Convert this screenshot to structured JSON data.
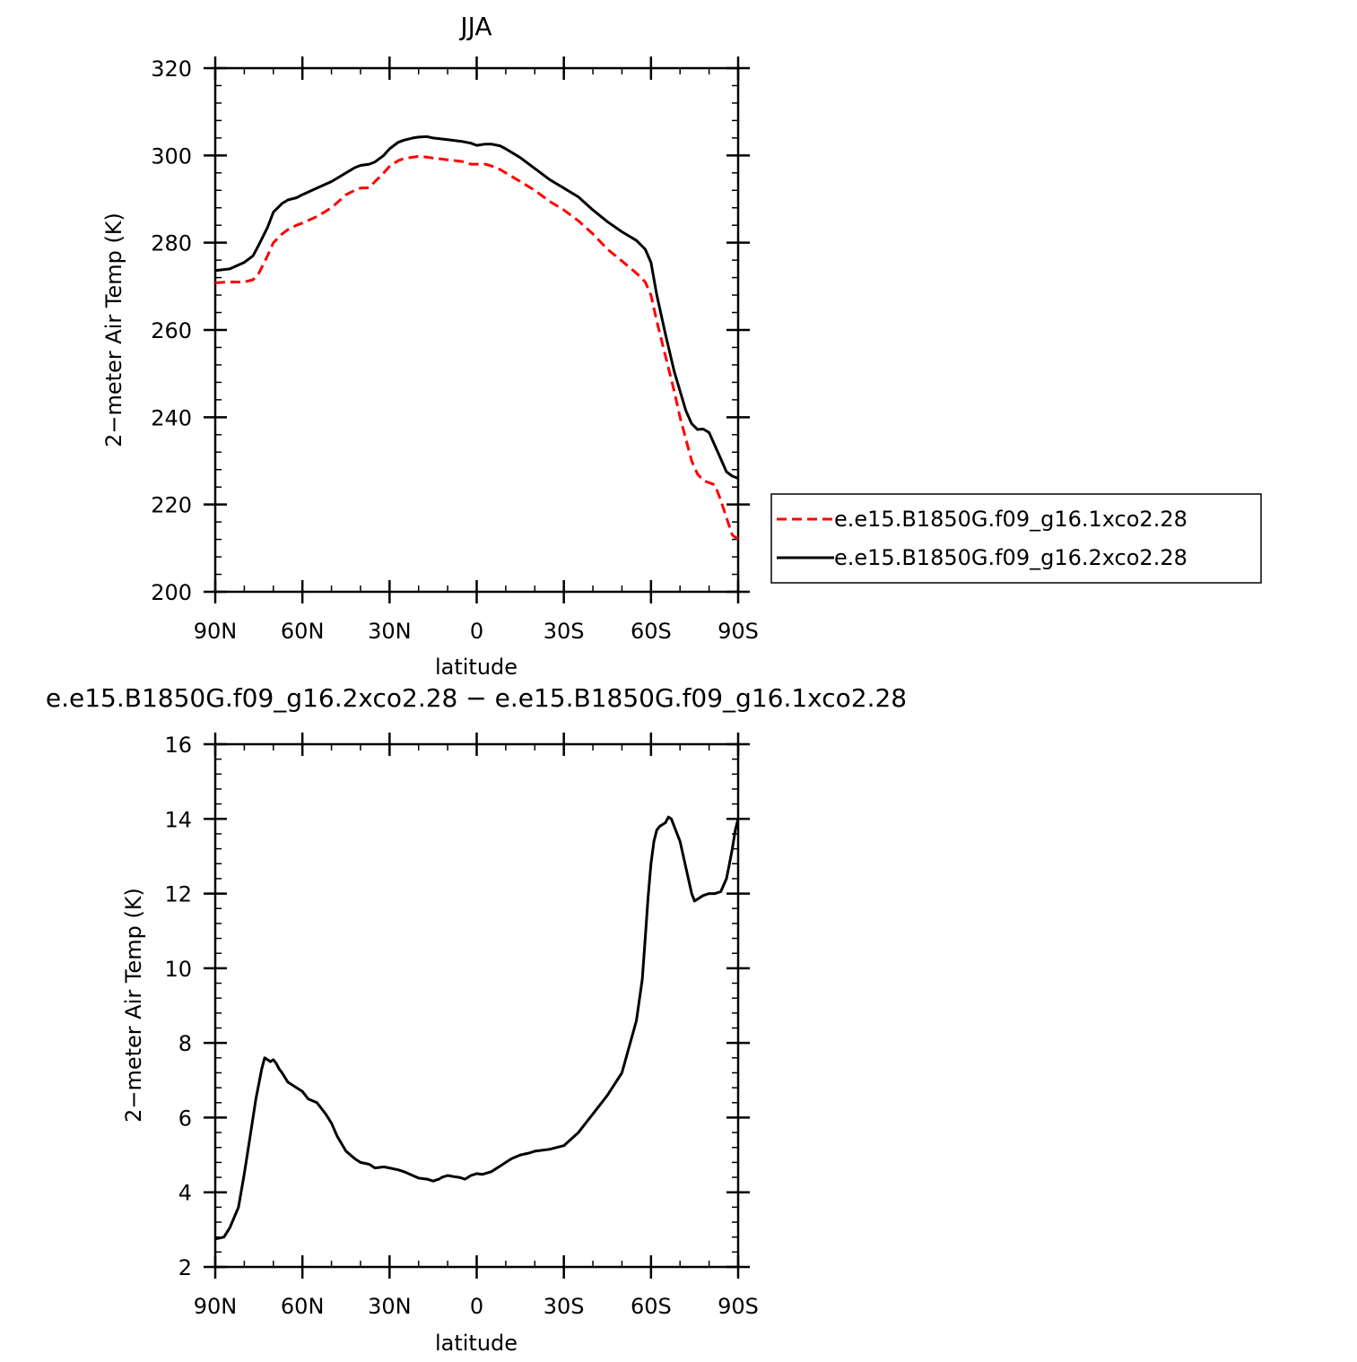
{
  "chart_data": [
    {
      "type": "line",
      "title": "JJA",
      "xlabel": "latitude",
      "ylabel": "2−meter Air Temp (K)",
      "xlim": [
        90,
        -90
      ],
      "ylim": [
        200,
        320
      ],
      "x_ticks": [
        90,
        60,
        30,
        0,
        -30,
        -60,
        -90
      ],
      "x_tick_labels": [
        "90N",
        "60N",
        "30N",
        "0",
        "30S",
        "60S",
        "90S"
      ],
      "y_ticks": [
        200,
        220,
        240,
        260,
        280,
        300,
        320
      ],
      "y_tick_labels": [
        "200",
        "220",
        "240",
        "260",
        "280",
        "300",
        "320"
      ],
      "legend_position": "right",
      "series": [
        {
          "name": "e.e15.B1850G.f09_g16.1xco2.28",
          "color": "#ff0000",
          "dash": "dashed",
          "x": [
            90,
            85,
            80,
            77,
            75,
            72,
            70,
            67,
            65,
            62,
            60,
            55,
            50,
            45,
            42,
            40,
            37,
            35,
            32,
            30,
            27,
            25,
            22,
            20,
            17,
            15,
            10,
            5,
            2,
            0,
            -3,
            -5,
            -8,
            -10,
            -15,
            -20,
            -25,
            -30,
            -35,
            -40,
            -45,
            -50,
            -55,
            -58,
            -60,
            -62,
            -65,
            -68,
            -70,
            -72,
            -74,
            -76,
            -78,
            -80,
            -82,
            -84,
            -86,
            -88,
            -90
          ],
          "y": [
            270.8,
            271,
            271,
            271.5,
            273,
            277,
            280,
            282,
            283,
            284,
            284.5,
            286,
            288,
            291,
            292,
            292.5,
            292.6,
            294,
            296,
            297.5,
            298.8,
            299.3,
            299.6,
            299.8,
            299.6,
            299.4,
            299,
            298.6,
            298,
            298,
            298,
            297.6,
            296.8,
            296,
            294,
            292,
            289.5,
            287.5,
            285,
            282,
            278.5,
            275.8,
            273,
            271,
            268,
            262,
            254,
            246,
            240,
            235,
            230,
            227,
            225.5,
            225,
            224.5,
            221,
            217,
            213,
            212
          ]
        },
        {
          "name": "e.e15.B1850G.f09_g16.2xco2.28",
          "color": "#000000",
          "dash": "solid",
          "x": [
            90,
            85,
            80,
            77,
            75,
            72,
            70,
            67,
            65,
            62,
            60,
            55,
            50,
            45,
            42,
            40,
            37,
            35,
            32,
            30,
            27,
            25,
            22,
            20,
            17,
            15,
            10,
            5,
            2,
            0,
            -3,
            -5,
            -8,
            -10,
            -15,
            -20,
            -25,
            -30,
            -35,
            -40,
            -45,
            -50,
            -55,
            -58,
            -60,
            -62,
            -65,
            -68,
            -70,
            -72,
            -74,
            -76,
            -78,
            -80,
            -82,
            -84,
            -86,
            -88,
            -90
          ],
          "y": [
            273.6,
            274,
            275.5,
            277,
            279.5,
            283.5,
            287,
            289,
            289.8,
            290.3,
            291,
            292.5,
            294,
            296,
            297.2,
            297.7,
            298,
            298.5,
            300,
            301.5,
            303,
            303.5,
            304,
            304.2,
            304.3,
            304,
            303.6,
            303.2,
            302.8,
            302.3,
            302.6,
            302.6,
            302.2,
            301.5,
            299.5,
            297,
            294.5,
            292.5,
            290.5,
            287.5,
            284.8,
            282.5,
            280.5,
            278.5,
            275.5,
            268,
            259,
            250.5,
            246,
            241.5,
            238.5,
            237.2,
            237.3,
            236.5,
            233.5,
            230.5,
            227.5,
            226.5,
            226
          ]
        }
      ]
    },
    {
      "type": "line",
      "title": "e.e15.B1850G.f09_g16.2xco2.28 − e.e15.B1850G.f09_g16.1xco2.28",
      "xlabel": "latitude",
      "ylabel": "2−meter Air Temp (K)",
      "xlim": [
        90,
        -90
      ],
      "ylim": [
        2,
        16
      ],
      "x_ticks": [
        90,
        60,
        30,
        0,
        -30,
        -60,
        -90
      ],
      "x_tick_labels": [
        "90N",
        "60N",
        "30N",
        "0",
        "30S",
        "60S",
        "90S"
      ],
      "y_ticks": [
        2,
        4,
        6,
        8,
        10,
        12,
        14,
        16
      ],
      "y_tick_labels": [
        "2",
        "4",
        "6",
        "8",
        "10",
        "12",
        "14",
        "16"
      ],
      "series": [
        {
          "color": "#000000",
          "dash": "solid",
          "x": [
            90,
            87,
            85,
            82,
            80,
            78,
            76,
            74,
            73,
            72,
            71,
            70,
            69,
            68,
            67,
            65,
            62,
            60,
            58,
            55,
            52,
            50,
            48,
            45,
            42,
            40,
            37,
            35,
            32,
            30,
            27,
            25,
            22,
            20,
            17,
            15,
            13,
            12,
            10,
            8,
            6,
            4,
            2,
            0,
            -2,
            -5,
            -8,
            -10,
            -12,
            -15,
            -18,
            -20,
            -25,
            -30,
            -35,
            -38,
            -40,
            -45,
            -50,
            -55,
            -57,
            -58,
            -59,
            -60,
            -61,
            -62,
            -63,
            -64,
            -65,
            -66,
            -67,
            -68,
            -70,
            -72,
            -74,
            -75,
            -76,
            -77,
            -78,
            -80,
            -82,
            -84,
            -86,
            -87,
            -88,
            -89,
            -90
          ],
          "y": [
            2.75,
            2.8,
            3.05,
            3.6,
            4.5,
            5.5,
            6.5,
            7.3,
            7.6,
            7.55,
            7.5,
            7.55,
            7.45,
            7.3,
            7.2,
            6.95,
            6.8,
            6.7,
            6.5,
            6.4,
            6.1,
            5.85,
            5.5,
            5.1,
            4.9,
            4.8,
            4.75,
            4.65,
            4.68,
            4.65,
            4.6,
            4.55,
            4.45,
            4.38,
            4.35,
            4.3,
            4.35,
            4.4,
            4.45,
            4.42,
            4.4,
            4.35,
            4.45,
            4.5,
            4.48,
            4.55,
            4.7,
            4.8,
            4.9,
            5.0,
            5.05,
            5.1,
            5.15,
            5.25,
            5.6,
            5.9,
            6.1,
            6.6,
            7.2,
            8.6,
            9.7,
            10.8,
            11.9,
            12.8,
            13.4,
            13.7,
            13.8,
            13.85,
            13.9,
            14.05,
            14.0,
            13.8,
            13.4,
            12.7,
            12.0,
            11.8,
            11.85,
            11.9,
            11.95,
            12.0,
            12.0,
            12.05,
            12.4,
            12.8,
            13.2,
            13.7,
            14.0
          ]
        }
      ]
    }
  ]
}
